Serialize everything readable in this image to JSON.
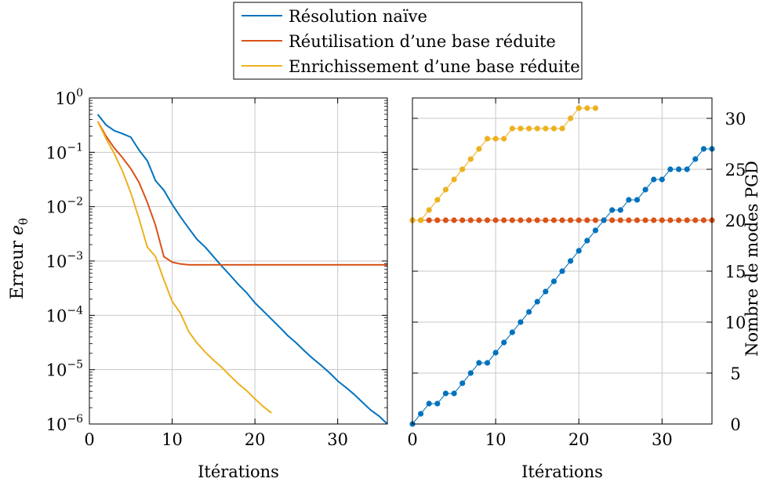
{
  "legend": {
    "entries": [
      {
        "label": "Résolution naïve",
        "color": "#0072BD"
      },
      {
        "label": "Réutilisation d’une base réduite",
        "color": "#D95319"
      },
      {
        "label": "Enrichissement d’une base réduite",
        "color": "#EDB120"
      }
    ]
  },
  "chart_data": [
    {
      "type": "line",
      "xlabel": "Itérations",
      "ylabel": "Erreur",
      "ylabel_symbol": "e",
      "ylabel_subscript": "θ",
      "yscale": "log",
      "xlim": [
        0,
        36
      ],
      "ylim": [
        1e-06,
        1
      ],
      "xticks": [
        "0",
        "10",
        "20",
        "30"
      ],
      "yticks": [
        {
          "base": "10",
          "exp": "0"
        },
        {
          "base": "10",
          "exp": "−1"
        },
        {
          "base": "10",
          "exp": "−2"
        },
        {
          "base": "10",
          "exp": "−3"
        },
        {
          "base": "10",
          "exp": "−4"
        },
        {
          "base": "10",
          "exp": "−5"
        },
        {
          "base": "10",
          "exp": "−6"
        }
      ],
      "grid": true,
      "series": [
        {
          "name": "Résolution naïve",
          "color": "#0072BD",
          "x": [
            1,
            2,
            3,
            4,
            5,
            6,
            7,
            8,
            9,
            10,
            11,
            12,
            13,
            14,
            15,
            16,
            17,
            18,
            19,
            20,
            21,
            22,
            23,
            24,
            25,
            26,
            27,
            28,
            29,
            30,
            31,
            32,
            33,
            34,
            35,
            36
          ],
          "y": [
            0.5,
            0.32,
            0.25,
            0.22,
            0.19,
            0.11,
            0.07,
            0.03,
            0.02,
            0.011,
            0.0065,
            0.004,
            0.0025,
            0.0018,
            0.0012,
            0.0008,
            0.00055,
            0.00037,
            0.00026,
            0.00017,
            0.00012,
            8.5e-05,
            6e-05,
            4.2e-05,
            3.1e-05,
            2.2e-05,
            1.6e-05,
            1.2e-05,
            8.8e-06,
            6.2e-06,
            4.7e-06,
            3.5e-06,
            2.5e-06,
            1.8e-06,
            1.4e-06,
            1e-06
          ]
        },
        {
          "name": "Réutilisation d’une base réduite",
          "color": "#D95319",
          "x": [
            1,
            2,
            3,
            4,
            5,
            6,
            7,
            8,
            9,
            10,
            11,
            12,
            13,
            14,
            15,
            16,
            17,
            18,
            19,
            20,
            21,
            22,
            23,
            24,
            25,
            26,
            27,
            28,
            29,
            30,
            31,
            32,
            33,
            34,
            35,
            36
          ],
          "y": [
            0.37,
            0.2,
            0.12,
            0.08,
            0.05,
            0.028,
            0.012,
            0.0045,
            0.0012,
            0.00095,
            0.00088,
            0.00085,
            0.00085,
            0.00085,
            0.00085,
            0.00085,
            0.00085,
            0.00085,
            0.00085,
            0.00085,
            0.00085,
            0.00085,
            0.00085,
            0.00085,
            0.00085,
            0.00085,
            0.00085,
            0.00085,
            0.00085,
            0.00085,
            0.00085,
            0.00085,
            0.00085,
            0.00085,
            0.00085,
            0.00085
          ]
        },
        {
          "name": "Enrichissement d’une base réduite",
          "color": "#EDB120",
          "x": [
            1,
            2,
            3,
            4,
            5,
            6,
            7,
            8,
            9,
            10,
            11,
            12,
            13,
            14,
            15,
            16,
            17,
            18,
            19,
            20,
            21,
            22
          ],
          "y": [
            0.37,
            0.18,
            0.095,
            0.045,
            0.018,
            0.006,
            0.0018,
            0.0012,
            0.00045,
            0.00018,
            0.00011,
            5e-05,
            3.1e-05,
            2.1e-05,
            1.5e-05,
            1.1e-05,
            7.7e-06,
            5.5e-06,
            4.1e-06,
            2.9e-06,
            2.1e-06,
            1.6e-06
          ]
        }
      ]
    },
    {
      "type": "line",
      "xlabel": "Itérations",
      "ylabel": "Nombre de modes PGD",
      "ylabel_position": "right",
      "xlim": [
        0,
        36
      ],
      "ylim": [
        0,
        32
      ],
      "xticks": [
        "0",
        "10",
        "20",
        "30"
      ],
      "yticks": [
        "0",
        "5",
        "10",
        "15",
        "20",
        "25",
        "30"
      ],
      "grid": true,
      "markers": true,
      "series": [
        {
          "name": "Résolution naïve",
          "color": "#0072BD",
          "x": [
            0,
            1,
            2,
            3,
            4,
            5,
            6,
            7,
            8,
            9,
            10,
            11,
            12,
            13,
            14,
            15,
            16,
            17,
            18,
            19,
            20,
            21,
            22,
            23,
            24,
            25,
            26,
            27,
            28,
            29,
            30,
            31,
            32,
            33,
            34,
            35,
            36
          ],
          "y": [
            0,
            1,
            2,
            2,
            3,
            3,
            4,
            5,
            6,
            6,
            7,
            8,
            9,
            10,
            11,
            12,
            13,
            14,
            15,
            16,
            17,
            18,
            19,
            20,
            21,
            21,
            22,
            22,
            23,
            24,
            24,
            25,
            25,
            25,
            26,
            27,
            27
          ]
        },
        {
          "name": "Réutilisation d’une base réduite",
          "color": "#D95319",
          "x": [
            0,
            1,
            2,
            3,
            4,
            5,
            6,
            7,
            8,
            9,
            10,
            11,
            12,
            13,
            14,
            15,
            16,
            17,
            18,
            19,
            20,
            21,
            22,
            23,
            24,
            25,
            26,
            27,
            28,
            29,
            30,
            31,
            32,
            33,
            34,
            35,
            36
          ],
          "y": [
            20,
            20,
            20,
            20,
            20,
            20,
            20,
            20,
            20,
            20,
            20,
            20,
            20,
            20,
            20,
            20,
            20,
            20,
            20,
            20,
            20,
            20,
            20,
            20,
            20,
            20,
            20,
            20,
            20,
            20,
            20,
            20,
            20,
            20,
            20,
            20,
            20
          ]
        },
        {
          "name": "Enrichissement d’une base réduite",
          "color": "#EDB120",
          "x": [
            0,
            1,
            2,
            3,
            4,
            5,
            6,
            7,
            8,
            9,
            10,
            11,
            12,
            13,
            14,
            15,
            16,
            17,
            18,
            19,
            20,
            21,
            22
          ],
          "y": [
            20,
            20,
            21,
            22,
            23,
            24,
            25,
            26,
            27,
            28,
            28,
            28,
            29,
            29,
            29,
            29,
            29,
            29,
            29,
            30,
            31,
            31,
            31
          ]
        }
      ]
    }
  ]
}
